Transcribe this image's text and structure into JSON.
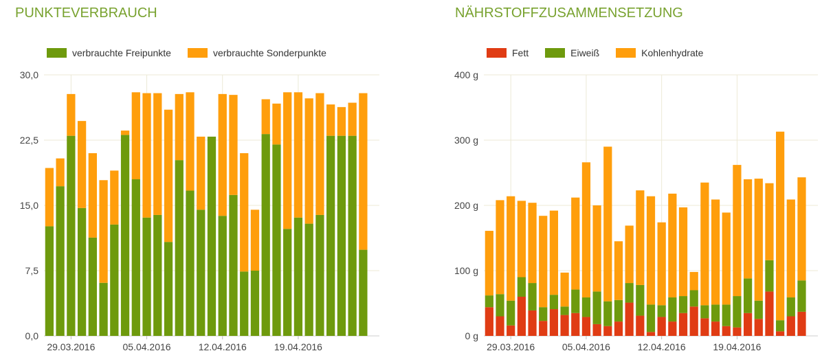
{
  "chart_data": [
    {
      "type": "bar",
      "stacked": true,
      "title": "PUNKTEVERBRAUCH",
      "xlabel": "",
      "ylabel": "",
      "ylim": [
        0,
        30
      ],
      "yticks": [
        "0,0",
        "7,5",
        "15,0",
        "22,5",
        "30,0"
      ],
      "xtick_labels": [
        "29.03.2016",
        "05.04.2016",
        "12.04.2016",
        "19.04.2016"
      ],
      "grid": true,
      "legend_position": "top-left",
      "series": [
        {
          "name": "verbrauchte Freipunkte",
          "color": "#6e9a0d",
          "values": [
            12.6,
            17.2,
            23.0,
            14.7,
            11.3,
            6.1,
            12.8,
            23.1,
            18.0,
            13.6,
            13.9,
            10.8,
            20.2,
            16.7,
            14.5,
            22.9,
            13.8,
            16.2,
            7.4,
            7.5,
            23.2,
            22.0,
            12.3,
            13.6,
            12.9,
            13.9,
            23.0,
            23.0,
            23.0,
            9.9
          ]
        },
        {
          "name": "verbrauchte Sonderpunkte",
          "color": "#ff9e0c",
          "values": [
            6.7,
            3.2,
            4.8,
            10.0,
            9.7,
            11.8,
            6.2,
            0.5,
            10.0,
            14.3,
            14.0,
            15.2,
            7.6,
            11.3,
            8.4,
            0.0,
            14.0,
            11.5,
            13.6,
            7.0,
            4.0,
            4.7,
            15.7,
            14.4,
            14.4,
            14.0,
            3.6,
            3.3,
            3.8,
            18.0
          ]
        }
      ]
    },
    {
      "type": "bar",
      "stacked": true,
      "title": "NÄHRSTOFFZUSAMMENSETZUNG",
      "xlabel": "",
      "ylabel": "",
      "ylim": [
        0,
        400
      ],
      "yticks": [
        "0 g",
        "100 g",
        "200 g",
        "300 g",
        "400 g"
      ],
      "xtick_labels": [
        "29.03.2016",
        "05.04.2016",
        "12.04.2016",
        "19.04.2016"
      ],
      "grid": true,
      "legend_position": "top-left",
      "series": [
        {
          "name": "Fett",
          "color": "#e03c14",
          "values": [
            44,
            30,
            16,
            60,
            39,
            23,
            41,
            32,
            35,
            29,
            18,
            15,
            22,
            51,
            31,
            6,
            29,
            22,
            35,
            45,
            27,
            22,
            15,
            13,
            35,
            26,
            68,
            7,
            30,
            37
          ]
        },
        {
          "name": "Eiweiß",
          "color": "#6e9a0d",
          "values": [
            18,
            34,
            38,
            30,
            42,
            21,
            22,
            13,
            36,
            30,
            50,
            38,
            33,
            30,
            47,
            42,
            18,
            37,
            26,
            25,
            20,
            26,
            33,
            48,
            53,
            28,
            48,
            17,
            29,
            48
          ]
        },
        {
          "name": "Kohlenhydrate",
          "color": "#ff9e0c",
          "values": [
            99,
            144,
            160,
            117,
            123,
            140,
            129,
            52,
            141,
            207,
            132,
            237,
            90,
            88,
            145,
            166,
            127,
            159,
            136,
            28,
            188,
            161,
            141,
            201,
            152,
            187,
            118,
            289,
            150,
            158
          ]
        }
      ]
    }
  ]
}
